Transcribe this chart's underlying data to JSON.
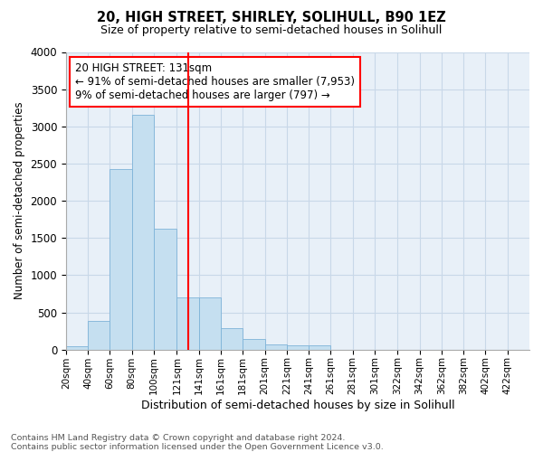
{
  "title1": "20, HIGH STREET, SHIRLEY, SOLIHULL, B90 1EZ",
  "title2": "Size of property relative to semi-detached houses in Solihull",
  "xlabel": "Distribution of semi-detached houses by size in Solihull",
  "ylabel": "Number of semi-detached properties",
  "footnote1": "Contains HM Land Registry data © Crown copyright and database right 2024.",
  "footnote2": "Contains public sector information licensed under the Open Government Licence v3.0.",
  "property_label": "20 HIGH STREET: 131sqm",
  "annotation_line1": "← 91% of semi-detached houses are smaller (7,953)",
  "annotation_line2": "9% of semi-detached houses are larger (797) →",
  "vline_x": 131,
  "bar_categories": [
    "20sqm",
    "40sqm",
    "60sqm",
    "80sqm",
    "100sqm",
    "121sqm",
    "141sqm",
    "161sqm",
    "181sqm",
    "201sqm",
    "221sqm",
    "241sqm",
    "261sqm",
    "281sqm",
    "301sqm",
    "322sqm",
    "342sqm",
    "362sqm",
    "382sqm",
    "402sqm",
    "422sqm"
  ],
  "bar_left_edges": [
    20,
    40,
    60,
    80,
    100,
    121,
    141,
    161,
    181,
    201,
    221,
    241,
    261,
    281,
    301,
    322,
    342,
    362,
    382,
    402,
    422
  ],
  "bar_widths": [
    20,
    20,
    20,
    20,
    21,
    20,
    20,
    20,
    20,
    20,
    20,
    20,
    20,
    20,
    21,
    20,
    20,
    20,
    20,
    20,
    20
  ],
  "bar_heights": [
    50,
    380,
    2430,
    3150,
    1630,
    700,
    700,
    290,
    140,
    70,
    60,
    55,
    0,
    0,
    0,
    0,
    0,
    0,
    0,
    0,
    0
  ],
  "bar_color": "#c5dff0",
  "bar_edge_color": "#7eb3d8",
  "vline_color": "red",
  "grid_color": "#c8d8e8",
  "background_color": "#e8f0f8",
  "ylim": [
    0,
    4000
  ],
  "yticks": [
    0,
    500,
    1000,
    1500,
    2000,
    2500,
    3000,
    3500,
    4000
  ],
  "xlim_left": 20,
  "xlim_right": 442
}
